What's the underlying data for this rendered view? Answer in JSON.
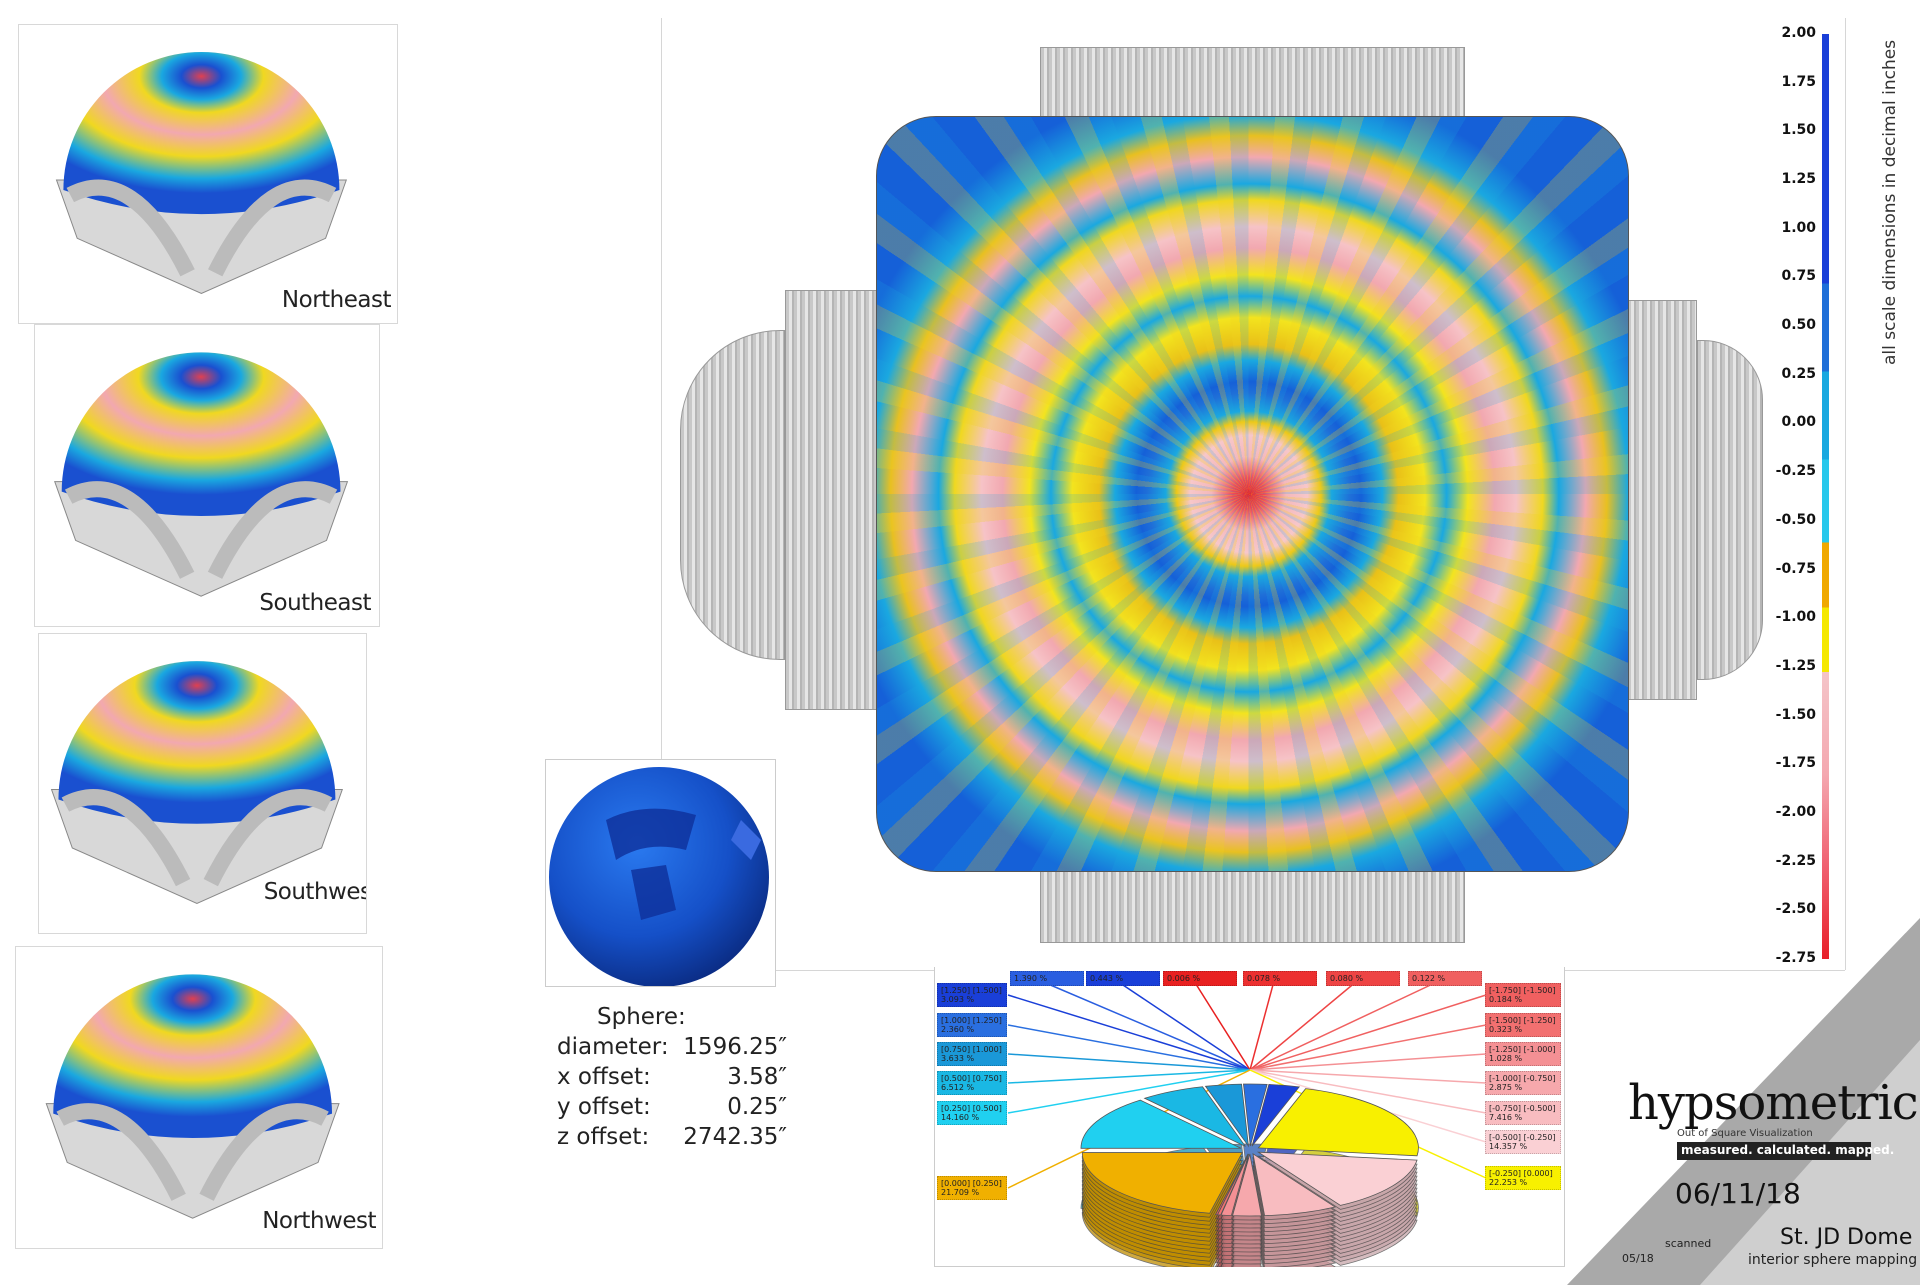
{
  "views": [
    {
      "label": "Northeast"
    },
    {
      "label": "Southeast"
    },
    {
      "label": "Southwest"
    },
    {
      "label": "Northwest"
    }
  ],
  "sphere": {
    "heading": "Sphere:",
    "rows": [
      {
        "label": "diameter:",
        "value": "1596.25″"
      },
      {
        "label": "x offset:",
        "value": "3.58″"
      },
      {
        "label": "y offset:",
        "value": "0.25″"
      },
      {
        "label": "z offset:",
        "value": "2742.35″"
      }
    ]
  },
  "legend": {
    "note": "all scale dimensions in decimal inches",
    "ticks": [
      "2.00",
      "1.75",
      "1.50",
      "1.25",
      "1.00",
      "0.75",
      "0.50",
      "0.25",
      "0.00",
      "-0.25",
      "-0.50",
      "-0.75",
      "-1.00",
      "-1.25",
      "-1.50",
      "-1.75",
      "-2.00",
      "-2.25",
      "-2.50",
      "-2.75"
    ],
    "colors": {
      "deep_blue": "#1a3fd8",
      "blue": "#1f6fd8",
      "cyan": "#1aa8e0",
      "orange": "#f0a800",
      "yellow": "#f5e800",
      "pink": "#f4b8bc",
      "red": "#e8202a"
    }
  },
  "chart_data": {
    "type": "pie",
    "top_labels": [
      {
        "text": "1.390 %",
        "color": "#2a5ee0"
      },
      {
        "text": "0.443 %",
        "color": "#1a3fd8"
      },
      {
        "text": "0.006 %",
        "color": "#e82020"
      },
      {
        "text": "0.078 %",
        "color": "#ec3030"
      },
      {
        "text": "0.080 %",
        "color": "#ee4444"
      },
      {
        "text": "0.122 %",
        "color": "#f06060"
      }
    ],
    "left_labels": [
      {
        "range": "[1.250] [1.500]",
        "pct": "3.093 %",
        "color": "#1a3fd8"
      },
      {
        "range": "[1.000] [1.250]",
        "pct": "2.360 %",
        "color": "#2a6fe0"
      },
      {
        "range": "[0.750] [1.000]",
        "pct": "3.633 %",
        "color": "#1a98d8"
      },
      {
        "range": "[0.500] [0.750]",
        "pct": "6.512 %",
        "color": "#1ab8e4"
      },
      {
        "range": "[0.250] [0.500]",
        "pct": "14.160 %",
        "color": "#20d0f0"
      },
      {
        "range": "[0.000] [0.250]",
        "pct": "21.709 %",
        "color": "#f0b000"
      }
    ],
    "right_labels": [
      {
        "range": "[-1.750] [-1.500]",
        "pct": "0.184 %",
        "color": "#f06060"
      },
      {
        "range": "[-1.500] [-1.250]",
        "pct": "0.323 %",
        "color": "#f27070"
      },
      {
        "range": "[-1.250] [-1.000]",
        "pct": "1.028 %",
        "color": "#f49094"
      },
      {
        "range": "[-1.000] [-0.750]",
        "pct": "2.875 %",
        "color": "#f6a8ac"
      },
      {
        "range": "[-0.750] [-0.500]",
        "pct": "7.416 %",
        "color": "#f8bcc0"
      },
      {
        "range": "[-0.500] [-0.250]",
        "pct": "14.357 %",
        "color": "#fad0d4"
      },
      {
        "range": "[-0.250] [0.000]",
        "pct": "22.253 %",
        "color": "#f8f000"
      }
    ]
  },
  "titleblock": {
    "title": "hypsometric",
    "subtitle": "Out of Square Visualization",
    "tagline": "measured. calculated. mapped.",
    "date": "06/11/18",
    "scanned_label": "scanned",
    "scanned_date": "05/18",
    "project": "St. JD Dome",
    "project_sub": "interior sphere mapping"
  }
}
